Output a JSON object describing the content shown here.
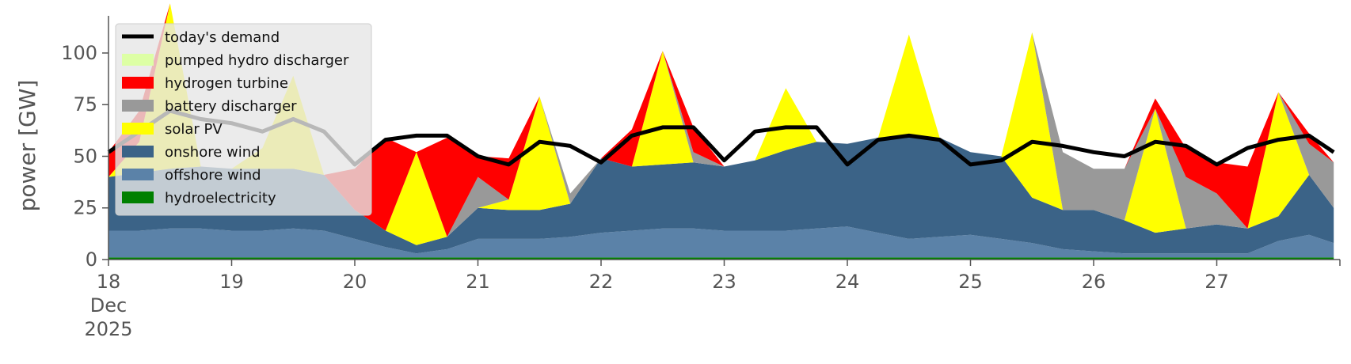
{
  "chart_data": {
    "type": "area",
    "ylabel": "power [GW]",
    "ylim": [
      0,
      118
    ],
    "xlim": [
      18,
      28
    ],
    "yticks": [
      0,
      25,
      50,
      75,
      100
    ],
    "xticks": [
      {
        "value": 18,
        "label": "18",
        "sub": [
          "Dec",
          "2025"
        ]
      },
      {
        "value": 19,
        "label": "19"
      },
      {
        "value": 20,
        "label": "20"
      },
      {
        "value": 21,
        "label": "21"
      },
      {
        "value": 22,
        "label": "22"
      },
      {
        "value": 23,
        "label": "23"
      },
      {
        "value": 24,
        "label": "24"
      },
      {
        "value": 25,
        "label": "25"
      },
      {
        "value": 26,
        "label": "26"
      },
      {
        "value": 27,
        "label": "27"
      }
    ],
    "legend_position": "top-left",
    "grid": false,
    "x": [
      18.0,
      18.25,
      18.5,
      18.75,
      19.0,
      19.25,
      19.5,
      19.75,
      20.0,
      20.25,
      20.5,
      20.75,
      21.0,
      21.25,
      21.5,
      21.75,
      22.0,
      22.25,
      22.5,
      22.75,
      23.0,
      23.25,
      23.5,
      23.75,
      24.0,
      24.25,
      24.5,
      24.75,
      25.0,
      25.25,
      25.5,
      25.75,
      26.0,
      26.25,
      26.5,
      26.75,
      27.0,
      27.25,
      27.5,
      27.75,
      27.95
    ],
    "series": [
      {
        "name": "hydroelectricity",
        "color": "#008000",
        "values": [
          1,
          1,
          1,
          1,
          1,
          1,
          1,
          1,
          1,
          1,
          1,
          1,
          1,
          1,
          1,
          1,
          1,
          1,
          1,
          1,
          1,
          1,
          1,
          1,
          1,
          1,
          1,
          1,
          1,
          1,
          1,
          1,
          1,
          1,
          1,
          1,
          1,
          1,
          1,
          1,
          1
        ]
      },
      {
        "name": "offshore wind",
        "color": "#5b82a8",
        "values": [
          13,
          13,
          14,
          14,
          13,
          13,
          14,
          13,
          9,
          5,
          2,
          4,
          9,
          9,
          9,
          10,
          12,
          13,
          14,
          14,
          13,
          13,
          13,
          14,
          15,
          12,
          9,
          10,
          11,
          9,
          7,
          4,
          3,
          2,
          2,
          2,
          2,
          2,
          8,
          11,
          7
        ]
      },
      {
        "name": "onshore wind",
        "color": "#3b6387",
        "values": [
          26,
          28,
          29,
          30,
          30,
          30,
          29,
          27,
          14,
          8,
          4,
          6,
          15,
          14,
          14,
          16,
          36,
          31,
          31,
          32,
          31,
          34,
          39,
          42,
          40,
          46,
          49,
          48,
          40,
          40,
          22,
          19,
          20,
          16,
          10,
          12,
          14,
          12,
          12,
          29,
          17
        ]
      },
      {
        "name": "solar PV",
        "color": "#ffff00",
        "values": [
          0,
          15,
          80,
          0,
          0,
          10,
          45,
          0,
          0,
          0,
          45,
          0,
          0,
          5,
          55,
          0,
          0,
          0,
          55,
          0,
          0,
          0,
          30,
          0,
          0,
          0,
          50,
          0,
          0,
          0,
          80,
          0,
          0,
          0,
          60,
          0,
          0,
          0,
          60,
          0,
          0
        ]
      },
      {
        "name": "battery discharger",
        "color": "#999999",
        "values": [
          0,
          0,
          0,
          0,
          0,
          0,
          0,
          0,
          0,
          0,
          0,
          0,
          15,
          0,
          0,
          5,
          0,
          0,
          0,
          5,
          0,
          0,
          0,
          0,
          0,
          0,
          0,
          0,
          0,
          0,
          0,
          28,
          20,
          25,
          0,
          25,
          15,
          0,
          0,
          15,
          22
        ]
      },
      {
        "name": "hydrogen turbine",
        "color": "#ff0000",
        "values": [
          12,
          15,
          0,
          0,
          0,
          0,
          0,
          0,
          20,
          45,
          0,
          48,
          10,
          20,
          0,
          0,
          0,
          18,
          0,
          12,
          0,
          0,
          0,
          0,
          0,
          0,
          0,
          0,
          0,
          0,
          0,
          0,
          0,
          0,
          5,
          14,
          15,
          30,
          0,
          5,
          0
        ]
      },
      {
        "name": "pumped hydro discharger",
        "color": "#ddffa5",
        "values": [
          0,
          0,
          0,
          0,
          0,
          0,
          0,
          0,
          0,
          0,
          0,
          0,
          0,
          0,
          0,
          0,
          0,
          0,
          0,
          0,
          0,
          0,
          0,
          0,
          0,
          0,
          0,
          0,
          0,
          0,
          0,
          0,
          0,
          0,
          0,
          0,
          0,
          0,
          0,
          0,
          0
        ]
      }
    ],
    "demand": {
      "name": "today's demand",
      "color": "#000000",
      "values": [
        52,
        62,
        72,
        68,
        66,
        62,
        68,
        62,
        46,
        58,
        60,
        60,
        50,
        46,
        57,
        55,
        47,
        60,
        64,
        64,
        48,
        62,
        64,
        64,
        46,
        58,
        60,
        58,
        46,
        48,
        57,
        55,
        52,
        50,
        57,
        55,
        46,
        54,
        58,
        60,
        52
      ]
    },
    "legend_order": [
      "today's demand",
      "pumped hydro discharger",
      "hydrogen turbine",
      "battery discharger",
      "solar PV",
      "onshore wind",
      "offshore wind",
      "hydroelectricity"
    ]
  }
}
